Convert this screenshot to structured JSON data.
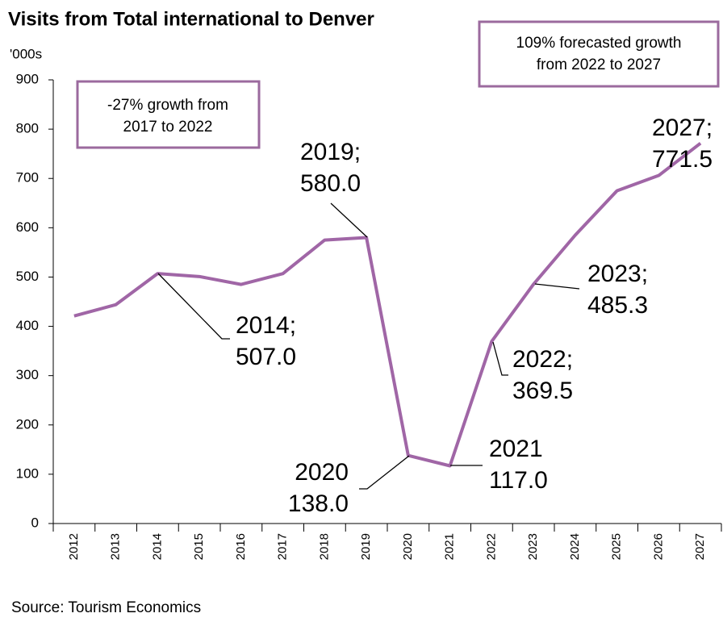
{
  "chart_data": {
    "type": "line",
    "title": "Visits from Total international to Denver",
    "y_unit": "'000s",
    "source": "Source: Tourism Economics",
    "categories": [
      "2012",
      "2013",
      "2014",
      "2015",
      "2016",
      "2017",
      "2018",
      "2019",
      "2020",
      "2021",
      "2022",
      "2023",
      "2024",
      "2025",
      "2026",
      "2027"
    ],
    "values": [
      421,
      444,
      507.0,
      501,
      485,
      507,
      575,
      580.0,
      138.0,
      117.0,
      369.5,
      485.3,
      585,
      675,
      706,
      771.5
    ],
    "value_label_heads": [
      null,
      null,
      "2014;",
      null,
      null,
      null,
      null,
      "2019;",
      "2020",
      "2021",
      "2022;",
      "2023;",
      null,
      null,
      null,
      "2027;"
    ],
    "value_labels": [
      null,
      null,
      "507.0",
      null,
      null,
      null,
      null,
      "580.0",
      "138.0",
      "117.0",
      "369.5",
      "485.3",
      null,
      null,
      null,
      "771.5"
    ],
    "color": "#a066a6",
    "ylim": [
      0,
      900
    ],
    "yticks": [
      0,
      100,
      200,
      300,
      400,
      500,
      600,
      700,
      800,
      900
    ],
    "annotations": [
      [
        "-27% growth from",
        "2017 to 2022"
      ],
      [
        "109% forecasted growth",
        "from 2022 to 2027"
      ]
    ]
  }
}
